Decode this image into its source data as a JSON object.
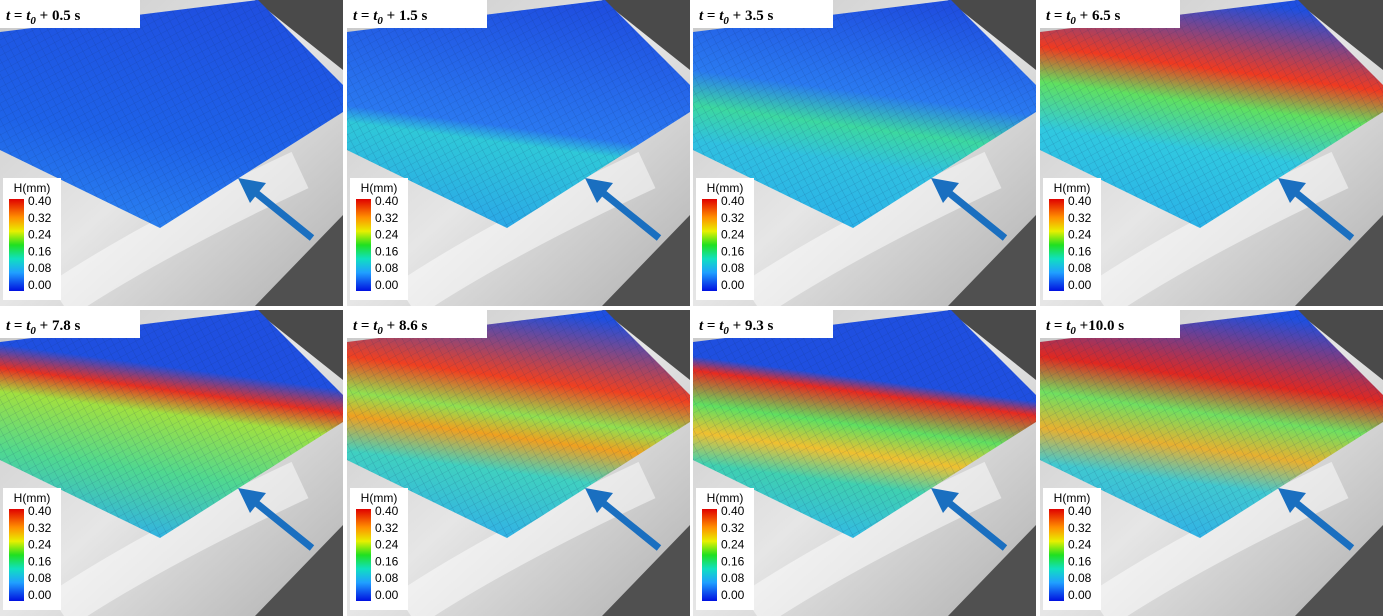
{
  "colorbar": {
    "title": "H(mm)",
    "ticks": [
      "0.40",
      "0.32",
      "0.24",
      "0.16",
      "0.08",
      "0.00"
    ]
  },
  "panels": [
    {
      "label": [
        "t",
        " = ",
        "t",
        "0",
        " + 0.5 s"
      ]
    },
    {
      "label": [
        "t",
        " = ",
        "t",
        "0",
        " + 1.5 s"
      ]
    },
    {
      "label": [
        "t",
        " = ",
        "t",
        "0",
        " + 3.5 s"
      ]
    },
    {
      "label": [
        "t",
        " = ",
        "t",
        "0",
        " + 6.5 s"
      ]
    },
    {
      "label": [
        "t",
        " = ",
        "t",
        "0",
        " + 7.8 s"
      ]
    },
    {
      "label": [
        "t",
        " = ",
        "t",
        "0",
        " + 8.6 s"
      ]
    },
    {
      "label": [
        "t",
        " = ",
        "t",
        "0",
        " + 9.3 s"
      ]
    },
    {
      "label": [
        "t",
        " = ",
        "t",
        "0",
        " +10.0 s"
      ]
    }
  ]
}
